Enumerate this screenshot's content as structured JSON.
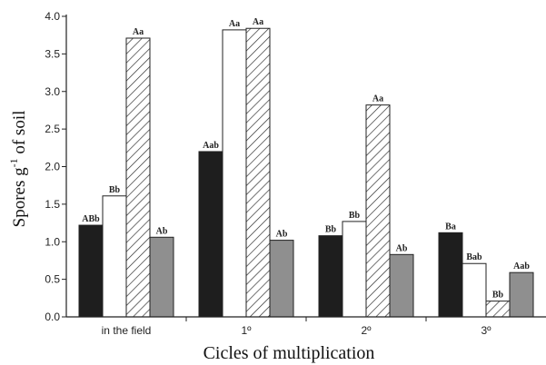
{
  "chart_data": {
    "type": "bar",
    "title": "",
    "xlabel": "Cicles of multiplication",
    "ylabel_main": "Spores g",
    "ylabel_sup": "-1",
    "ylabel_tail": " of soil",
    "categories": [
      "in the field",
      "1º",
      "2º",
      "3º"
    ],
    "ylim": [
      0,
      4.0
    ],
    "yticks": [
      "0.0",
      "0.5",
      "1.0",
      "1.5",
      "2.0",
      "2.5",
      "3.0",
      "3.5",
      "4.0"
    ],
    "grid": false,
    "legend": "none",
    "series": [
      {
        "fill": "#1e1e1e",
        "pattern": "solid",
        "values": [
          1.22,
          2.2,
          1.08,
          1.12
        ],
        "labels": [
          "ABb",
          "Aab",
          "Bb",
          "Ba"
        ]
      },
      {
        "fill": "#ffffff",
        "pattern": "solid",
        "values": [
          1.61,
          3.82,
          1.27,
          0.71
        ],
        "labels": [
          "Bb",
          "Aa",
          "Bb",
          "Bab"
        ]
      },
      {
        "fill": "#ffffff",
        "pattern": "hatched",
        "values": [
          3.71,
          3.84,
          2.82,
          0.21
        ],
        "labels": [
          "Aa",
          "Aa",
          "Aa",
          "Bb"
        ]
      },
      {
        "fill": "#8f8f8f",
        "pattern": "solid",
        "values": [
          1.06,
          1.02,
          0.83,
          0.59
        ],
        "labels": [
          "Ab",
          "Ab",
          "Ab",
          "Aab"
        ]
      }
    ]
  }
}
